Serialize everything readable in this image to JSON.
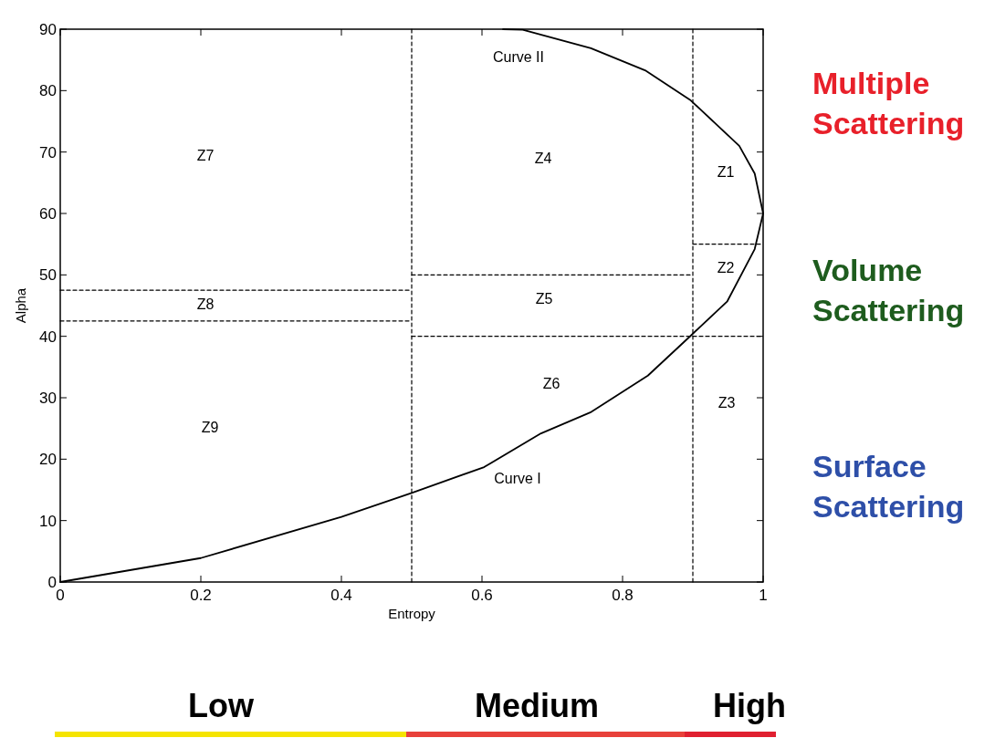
{
  "chart_data": {
    "type": "line",
    "xlabel": "Entropy",
    "ylabel": "Alpha",
    "xlim": [
      0,
      1
    ],
    "ylim": [
      0,
      90
    ],
    "xticks": [
      0,
      0.2,
      0.4,
      0.6,
      0.8,
      1
    ],
    "yticks": [
      0,
      10,
      20,
      30,
      40,
      50,
      60,
      70,
      80,
      90
    ],
    "grid": false,
    "marker": "none",
    "series": [
      {
        "color": "#000000",
        "line_style": "solid",
        "x": [
          0,
          0.2,
          0.4,
          0.5,
          0.603,
          0.684,
          0.754,
          0.836,
          0.897,
          0.949,
          0.988,
          1,
          0.988,
          0.966,
          0.897,
          0.832,
          0.755,
          0.658,
          0.63
        ],
        "values": [
          0,
          3.9,
          10.6,
          14.5,
          18.7,
          24.2,
          27.6,
          33.6,
          40.1,
          45.7,
          54.2,
          60,
          66.5,
          71,
          78.4,
          83.3,
          86.9,
          89.9,
          90
        ]
      },
      {
        "color": "#000000",
        "line_style": "dashed",
        "x": [
          0.5,
          0.5
        ],
        "values": [
          0,
          90
        ]
      },
      {
        "color": "#000000",
        "line_style": "dashed",
        "x": [
          0.9,
          0.9
        ],
        "values": [
          0,
          90
        ]
      },
      {
        "color": "#000000",
        "line_style": "dashed",
        "x": [
          0,
          0.5
        ],
        "values": [
          47.5,
          47.5
        ]
      },
      {
        "color": "#000000",
        "line_style": "dashed",
        "x": [
          0,
          0.5
        ],
        "values": [
          42.5,
          42.5
        ]
      },
      {
        "color": "#000000",
        "line_style": "dashed",
        "x": [
          0.5,
          0.9
        ],
        "values": [
          50,
          50
        ]
      },
      {
        "color": "#000000",
        "line_style": "dashed",
        "x": [
          0.5,
          1
        ],
        "values": [
          40,
          40
        ]
      },
      {
        "color": "#000000",
        "line_style": "dashed",
        "x": [
          0.9,
          1
        ],
        "values": [
          55,
          55
        ]
      }
    ],
    "annotations": [
      "Z1",
      "Z2",
      "Z3",
      "Z4",
      "Z5",
      "Z6",
      "Z7",
      "Z8",
      "Z9",
      "Curve II",
      "Curve I",
      "Multiple Scattering",
      "Volume Scattering",
      "Surface Scattering",
      "Low",
      "Medium",
      "High"
    ]
  }
}
